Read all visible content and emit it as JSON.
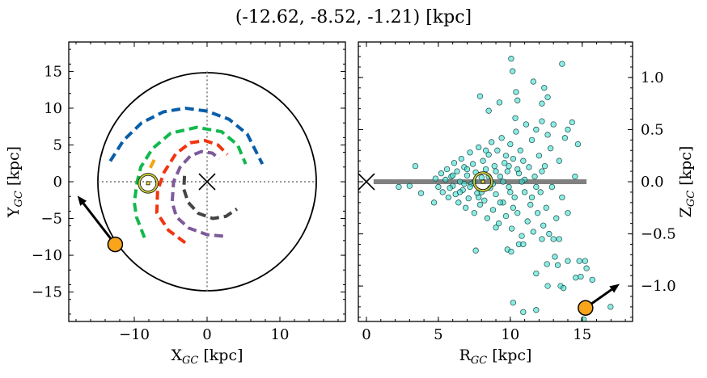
{
  "title": "(-12.62, -8.52, -1.21) [kpc]",
  "chart_data": [
    {
      "type": "line",
      "panel": "left",
      "xlabel": "X",
      "xlabel_sub": "GC",
      "xlabel_unit": " [kpc]",
      "ylabel": "Y",
      "ylabel_sub": "GC",
      "ylabel_unit": " [kpc]",
      "xlim": [
        -19,
        19
      ],
      "ylim": [
        -19,
        19
      ],
      "xticks": [
        -10,
        0,
        10
      ],
      "yticks": [
        -15,
        -10,
        -5,
        0,
        5,
        10,
        15
      ],
      "xtick_labels": [
        "−10",
        "0",
        "10"
      ],
      "ytick_labels": [
        "−15",
        "−10",
        "−5",
        "0",
        "5",
        "10",
        "15"
      ],
      "boundary_circle_radius": 15,
      "center_marker": [
        0,
        0
      ],
      "sun": [
        -8.1,
        -0.2
      ],
      "object": [
        -12.62,
        -8.52
      ],
      "object_arrow_to": [
        -17.8,
        -1.9
      ],
      "orbits": [
        {
          "color": "#0a5ea8",
          "points": [
            [
              -13.3,
              2.8
            ],
            [
              -11.5,
              5.6
            ],
            [
              -9,
              8
            ],
            [
              -6,
              9.5
            ],
            [
              -3,
              10
            ],
            [
              0,
              9.6
            ],
            [
              3,
              8.5
            ],
            [
              5.5,
              6.5
            ],
            [
              7.6,
              2.4
            ]
          ]
        },
        {
          "color": "#12b84c",
          "points": [
            [
              -8.6,
              -7.6
            ],
            [
              -9.7,
              -4.8
            ],
            [
              -10,
              -2.8
            ],
            [
              -9.6,
              0
            ],
            [
              -9.1,
              2
            ],
            [
              -7.5,
              4.5
            ],
            [
              -5,
              6.6
            ],
            [
              -1.4,
              7.4
            ],
            [
              2,
              6.8
            ],
            [
              4.2,
              5
            ],
            [
              5.3,
              2.4
            ]
          ]
        },
        {
          "color": "#f0350f",
          "points": [
            [
              -3,
              -8.3
            ],
            [
              -5.3,
              -6.6
            ],
            [
              -6.9,
              -4.2
            ],
            [
              -6.8,
              -1.2
            ],
            [
              -5.9,
              1.3
            ],
            [
              -4.3,
              3.8
            ],
            [
              -2.3,
              5.3
            ],
            [
              -0.3,
              5.6
            ],
            [
              1.5,
              5
            ],
            [
              2.8,
              3.7
            ]
          ]
        },
        {
          "color": "#7d5a9a",
          "points": [
            [
              2.2,
              -7.4
            ],
            [
              0,
              -7.2
            ],
            [
              -2.5,
              -6.3
            ],
            [
              -4.2,
              -4.8
            ],
            [
              -4.8,
              -2.8
            ],
            [
              -4.6,
              0
            ],
            [
              -3.7,
              2
            ],
            [
              -2.3,
              3.5
            ],
            [
              -0.8,
              4.1
            ],
            [
              0.7,
              3.9
            ],
            [
              1.7,
              3.1
            ]
          ]
        },
        {
          "color": "#444444",
          "points": [
            [
              -3.1,
              0.8
            ],
            [
              -3.2,
              -1
            ],
            [
              -2.6,
              -2.8
            ],
            [
              -1.2,
              -4.3
            ],
            [
              0.8,
              -5
            ],
            [
              2.6,
              -4.7
            ],
            [
              4.1,
              -3.7
            ]
          ]
        },
        {
          "color": "#f7a20c",
          "points": [
            [
              -7.8,
              1.9
            ],
            [
              -7.2,
              3.1
            ]
          ]
        }
      ]
    },
    {
      "type": "scatter",
      "panel": "right",
      "xlabel": "R",
      "xlabel_sub": "GC",
      "xlabel_unit": " [kpc]",
      "ylabel": "Z",
      "ylabel_sub": "GC",
      "ylabel_unit": " [kpc]",
      "xlim": [
        -0.56,
        18.5
      ],
      "ylim": [
        -1.34,
        1.34
      ],
      "xticks": [
        0,
        5,
        10,
        15
      ],
      "yticks": [
        -1.0,
        -0.5,
        0.0,
        0.5,
        1.0
      ],
      "xtick_labels": [
        "0",
        "5",
        "10",
        "15"
      ],
      "ytick_labels": [
        "−1.0",
        "−0.5",
        "0.0",
        "0.5",
        "1.0"
      ],
      "marker_color": "#40e0d0",
      "disk_band": {
        "r_range": [
          0.5,
          15.3
        ],
        "z": 0,
        "color": "#808080"
      },
      "center_marker": [
        0,
        0
      ],
      "sun": [
        8.1,
        0
      ],
      "object": [
        15.23,
        -1.21
      ],
      "object_arrow_to": [
        17.6,
        -0.98
      ],
      "points": [
        [
          10.06,
          1.18
        ],
        [
          10.16,
          1.06
        ],
        [
          13.6,
          1.13
        ],
        [
          11.6,
          0.96
        ],
        [
          12.36,
          0.9
        ],
        [
          7.9,
          0.82
        ],
        [
          10.4,
          0.86
        ],
        [
          10.5,
          0.78
        ],
        [
          9.25,
          0.76
        ],
        [
          8.5,
          0.68
        ],
        [
          12.6,
          0.81
        ],
        [
          12.2,
          0.75
        ],
        [
          10.35,
          0.61
        ],
        [
          14.3,
          0.57
        ],
        [
          14.0,
          0.5
        ],
        [
          14.7,
          0.36
        ],
        [
          14.5,
          0.05
        ],
        [
          3.4,
          0.15
        ],
        [
          2.25,
          -0.05
        ],
        [
          3.0,
          -0.04
        ],
        [
          3.8,
          -0.11
        ],
        [
          4.7,
          -0.2
        ],
        [
          7.6,
          -0.66
        ],
        [
          9.0,
          -0.44
        ],
        [
          9.8,
          -0.65
        ],
        [
          10.06,
          -0.67
        ],
        [
          13.1,
          -0.72
        ],
        [
          12.55,
          -0.79
        ],
        [
          13.3,
          -0.8
        ],
        [
          14.0,
          -0.76
        ],
        [
          14.8,
          -0.76
        ],
        [
          15.2,
          -0.76
        ],
        [
          15.3,
          -0.83
        ],
        [
          11.8,
          -0.88
        ],
        [
          14.55,
          -0.92
        ],
        [
          14.9,
          -0.91
        ],
        [
          15.7,
          -0.94
        ],
        [
          12.6,
          -1.0
        ],
        [
          13.5,
          -1.0
        ],
        [
          13.7,
          -1.02
        ],
        [
          10.2,
          -1.16
        ],
        [
          10.9,
          -1.25
        ],
        [
          11.8,
          -1.23
        ],
        [
          16.97,
          -1.2
        ],
        [
          15.1,
          -1.32
        ],
        [
          12.2,
          -0.55
        ],
        [
          13.0,
          -0.55
        ],
        [
          13.4,
          -0.55
        ],
        [
          10.6,
          -0.6
        ],
        [
          10.9,
          -0.6
        ],
        [
          4.8,
          0.03
        ],
        [
          5.0,
          -0.05
        ],
        [
          5.2,
          0.08
        ],
        [
          5.3,
          -0.1
        ],
        [
          5.5,
          0.02
        ],
        [
          5.6,
          0.12
        ],
        [
          5.7,
          -0.15
        ],
        [
          5.9,
          0.05
        ],
        [
          6.0,
          -0.04
        ],
        [
          6.1,
          0.18
        ],
        [
          6.2,
          -0.12
        ],
        [
          6.3,
          0.1
        ],
        [
          6.4,
          -0.2
        ],
        [
          6.5,
          0.0
        ],
        [
          6.6,
          0.22
        ],
        [
          6.7,
          -0.08
        ],
        [
          6.8,
          0.14
        ],
        [
          6.9,
          -0.25
        ],
        [
          7.0,
          0.06
        ],
        [
          7.1,
          -0.16
        ],
        [
          7.2,
          0.28
        ],
        [
          7.3,
          -0.02
        ],
        [
          7.4,
          0.17
        ],
        [
          7.5,
          -0.3
        ],
        [
          7.6,
          0.09
        ],
        [
          7.7,
          -0.11
        ],
        [
          7.8,
          0.33
        ],
        [
          7.9,
          -0.22
        ],
        [
          8.0,
          0.04
        ],
        [
          8.1,
          0.2
        ],
        [
          8.2,
          -0.18
        ],
        [
          8.3,
          0.12
        ],
        [
          8.4,
          -0.35
        ],
        [
          8.5,
          0.26
        ],
        [
          8.6,
          -0.06
        ],
        [
          8.7,
          0.38
        ],
        [
          8.8,
          -0.27
        ],
        [
          8.9,
          0.15
        ],
        [
          9.0,
          -0.12
        ],
        [
          9.1,
          0.3
        ],
        [
          9.2,
          -0.4
        ],
        [
          9.3,
          0.05
        ],
        [
          9.4,
          0.42
        ],
        [
          9.5,
          -0.2
        ],
        [
          9.6,
          0.18
        ],
        [
          9.7,
          -0.33
        ],
        [
          9.8,
          0.1
        ],
        [
          9.9,
          -0.05
        ],
        [
          10.0,
          0.36
        ],
        [
          10.1,
          -0.45
        ],
        [
          10.2,
          0.22
        ],
        [
          10.3,
          -0.15
        ],
        [
          10.4,
          0.48
        ],
        [
          10.5,
          -0.3
        ],
        [
          10.6,
          0.08
        ],
        [
          10.7,
          0.3
        ],
        [
          10.8,
          -0.52
        ],
        [
          10.9,
          0.2
        ],
        [
          11.0,
          -0.1
        ],
        [
          11.1,
          0.55
        ],
        [
          11.2,
          -0.38
        ],
        [
          11.3,
          0.14
        ],
        [
          11.4,
          -0.22
        ],
        [
          11.5,
          0.4
        ],
        [
          11.6,
          -0.48
        ],
        [
          11.7,
          0.05
        ],
        [
          11.8,
          0.5
        ],
        [
          11.9,
          -0.3
        ],
        [
          12.0,
          0.25
        ],
        [
          12.1,
          -0.1
        ],
        [
          12.2,
          0.58
        ],
        [
          12.3,
          -0.42
        ],
        [
          12.4,
          0.15
        ],
        [
          12.5,
          -0.25
        ],
        [
          12.6,
          0.45
        ],
        [
          12.7,
          -0.5
        ],
        [
          12.8,
          0.32
        ],
        [
          12.9,
          -0.05
        ],
        [
          13.0,
          0.55
        ],
        [
          13.2,
          -0.35
        ],
        [
          13.4,
          0.2
        ],
        [
          13.6,
          -0.15
        ],
        [
          13.8,
          0.42
        ],
        [
          14.0,
          -0.3
        ],
        [
          6.0,
          0.06
        ],
        [
          6.5,
          -0.1
        ],
        [
          7.0,
          0.12
        ],
        [
          7.5,
          0.0
        ],
        [
          8.0,
          -0.1
        ],
        [
          8.5,
          0.05
        ],
        [
          9.0,
          0.1
        ],
        [
          9.5,
          0.0
        ],
        [
          10.0,
          -0.1
        ],
        [
          10.5,
          0.12
        ],
        [
          11.0,
          0.02
        ],
        [
          7.2,
          -0.05
        ],
        [
          8.8,
          -0.02
        ],
        [
          9.3,
          -0.2
        ],
        [
          10.2,
          -0.25
        ],
        [
          9.7,
          0.25
        ],
        [
          8.3,
          0.3
        ],
        [
          7.8,
          -0.15
        ],
        [
          11.5,
          -0.15
        ],
        [
          12.2,
          0.1
        ],
        [
          6.8,
          -0.02
        ],
        [
          5.8,
          -0.06
        ],
        [
          9.9,
          0.15
        ],
        [
          10.8,
          0.0
        ],
        [
          11.8,
          -0.05
        ]
      ]
    }
  ]
}
